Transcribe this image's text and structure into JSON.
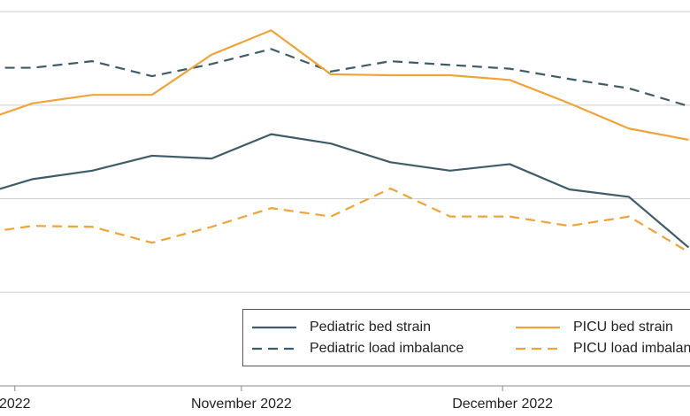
{
  "chart_data": {
    "type": "line",
    "categories": [
      null,
      null,
      null,
      null,
      null,
      null,
      null,
      null,
      null,
      null,
      null,
      null,
      null
    ],
    "series": [
      {
        "name": "Pediatric bed strain",
        "color": "#3e5c68",
        "dash": false,
        "values": [
          2.02,
          2.21,
          2.3,
          2.46,
          2.43,
          2.69,
          2.59,
          2.39,
          2.3,
          2.37,
          2.1,
          2.02,
          1.48
        ]
      },
      {
        "name": "Pediatric load imbalance",
        "color": "#3e5c68",
        "dash": true,
        "values": [
          3.4,
          3.4,
          3.47,
          3.31,
          3.44,
          3.6,
          3.36,
          3.47,
          3.43,
          3.39,
          3.28,
          3.18,
          2.99
        ]
      },
      {
        "name": "PICU bed strain",
        "color": "#f0a33a",
        "dash": false,
        "values": [
          2.8,
          3.02,
          3.11,
          3.11,
          3.54,
          3.8,
          3.33,
          3.32,
          3.32,
          3.27,
          3.02,
          2.75,
          2.63
        ]
      },
      {
        "name": "PICU load imbalance",
        "color": "#f0a33a",
        "dash": true,
        "values": [
          1.62,
          1.71,
          1.7,
          1.53,
          1.7,
          1.9,
          1.81,
          2.11,
          1.81,
          1.81,
          1.71,
          1.81,
          1.43
        ]
      }
    ],
    "xticks": [
      {
        "value": 0.7,
        "label": "2022"
      },
      {
        "value": 4.5,
        "label": "November 2022"
      },
      {
        "value": 8.88,
        "label": "December 2022"
      }
    ],
    "ylim": [
      0,
      4.02
    ],
    "yticks": [
      1,
      2,
      3,
      4
    ],
    "grid": true
  }
}
